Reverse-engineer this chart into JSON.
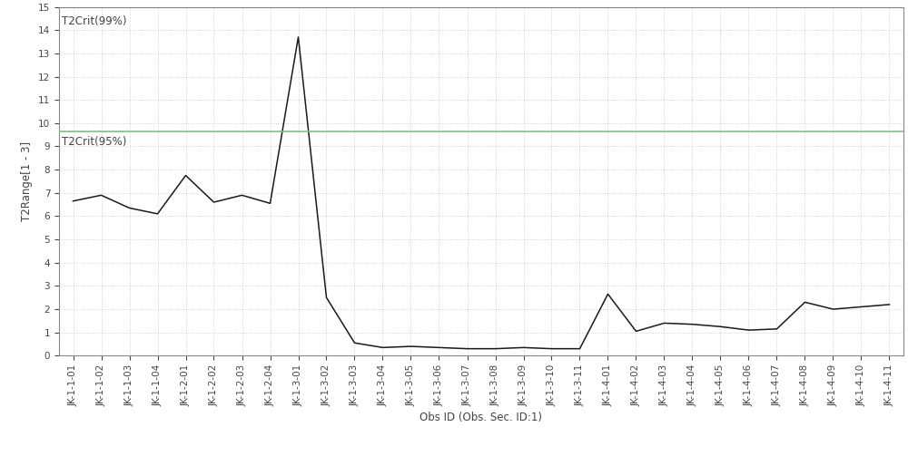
{
  "x_labels": [
    "JK-1-1-01",
    "JK-1-1-02",
    "JK-1-1-03",
    "JK-1-1-04",
    "JK-1-2-01",
    "JK-1-2-02",
    "JK-1-2-03",
    "JK-1-2-04",
    "JK-1-3-01",
    "JK-1-3-02",
    "JK-1-3-03",
    "JK-1-3-04",
    "JK-1-3-05",
    "JK-1-3-06",
    "JK-1-3-07",
    "JK-1-3-08",
    "JK-1-3-09",
    "JK-1-3-10",
    "JK-1-3-11",
    "JK-1-4-01",
    "JK-1-4-02",
    "JK-1-4-03",
    "JK-1-4-04",
    "JK-1-4-05",
    "JK-1-4-06",
    "JK-1-4-07",
    "JK-1-4-08",
    "JK-1-4-09",
    "JK-1-4-10",
    "JK-1-4-11"
  ],
  "y_values": [
    6.65,
    6.9,
    6.35,
    6.1,
    7.75,
    6.6,
    6.9,
    6.55,
    13.7,
    2.5,
    0.55,
    0.35,
    0.4,
    0.35,
    0.3,
    0.3,
    0.35,
    0.3,
    0.3,
    2.65,
    1.05,
    1.4,
    1.35,
    1.25,
    1.1,
    1.15,
    2.3,
    2.0,
    2.1,
    2.2
  ],
  "t2_crit_99": 15.0,
  "t2_crit_95": 9.65,
  "ylabel": "T2Range[1 - 3]",
  "xlabel": "Obs ID (Obs. Sec. ID:1)",
  "line_color": "#1a1a1a",
  "crit99_color": "#808080",
  "crit95_color": "#88bb88",
  "bg_color": "#ffffff",
  "plot_bg_color": "#ffffff",
  "grid_color": "#c0ccc0",
  "ylim": [
    0,
    15
  ],
  "label_99": "T2Crit(99%)",
  "label_95": "T2Crit(95%)",
  "label_fontsize": 8.5,
  "tick_fontsize": 7.5,
  "axis_label_fontsize": 8.5
}
